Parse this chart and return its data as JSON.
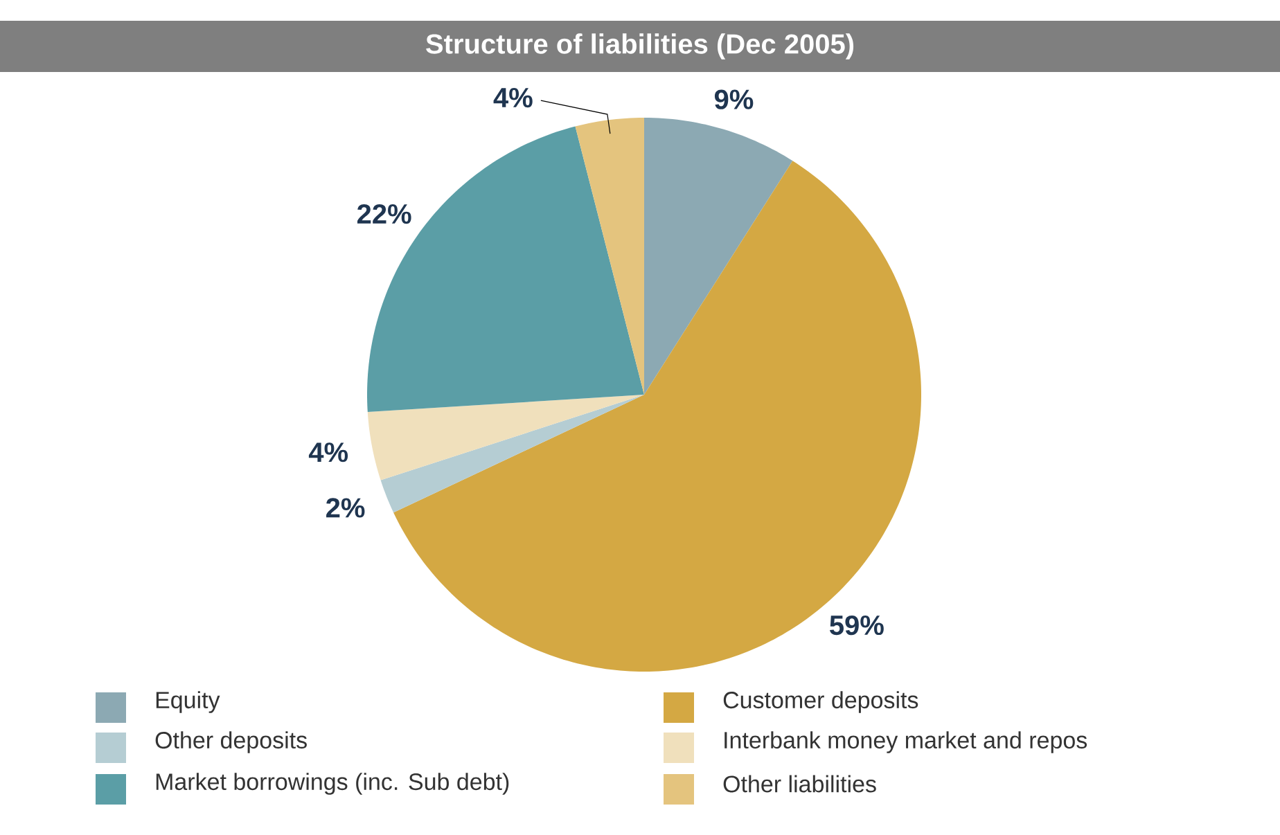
{
  "chart_data": {
    "type": "pie",
    "title": "Structure of liabilities (Dec 2005)",
    "categories": [
      "Equity",
      "Customer deposits",
      "Other deposits",
      "Interbank money market and repos",
      "Market borrowings (inc. Sub debt)",
      "Other liabilities"
    ],
    "values": [
      9,
      59,
      2,
      4,
      22,
      4
    ],
    "value_labels": [
      "9%",
      "59%",
      "2%",
      "4%",
      "22%",
      "4%"
    ],
    "colors": [
      "#8ca9b3",
      "#d4a843",
      "#b5cdd3",
      "#f0e0bc",
      "#5b9ea6",
      "#e4c47e"
    ],
    "legend": "bottom"
  }
}
